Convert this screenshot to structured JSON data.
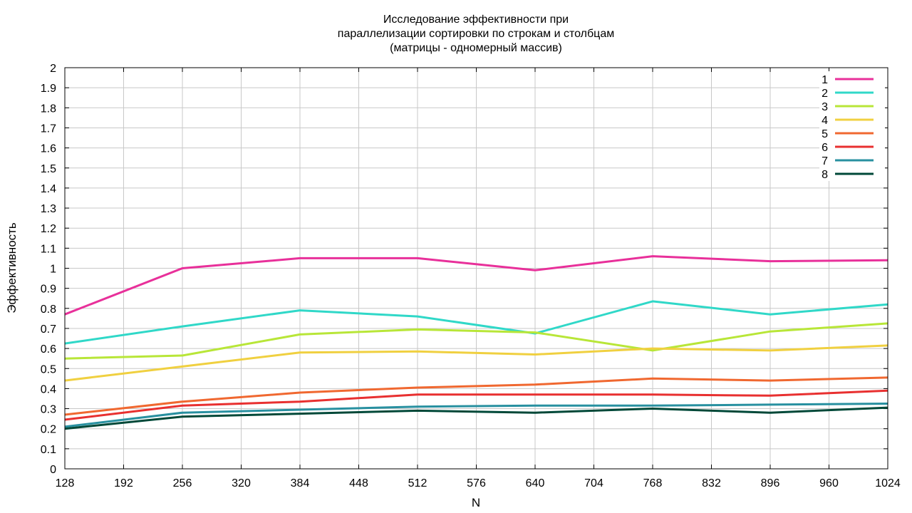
{
  "chart_data": {
    "type": "line",
    "title": [
      "Исследование эффективности при",
      "параллелизации сортировки по строкам и столбцам",
      "(матрицы - одномерный массив)"
    ],
    "xlabel": "N",
    "ylabel": "Эффективность",
    "xlim": [
      128,
      1024
    ],
    "ylim": [
      0,
      2
    ],
    "xticks": [
      "128",
      "192",
      "256",
      "320",
      "384",
      "448",
      "512",
      "576",
      "640",
      "704",
      "768",
      "832",
      "896",
      "960",
      "1024"
    ],
    "yticks": [
      "0",
      "0.1",
      "0.2",
      "0.3",
      "0.4",
      "0.5",
      "0.6",
      "0.7",
      "0.8",
      "0.9",
      "1",
      "1.1",
      "1.2",
      "1.3",
      "1.4",
      "1.5",
      "1.6",
      "1.7",
      "1.8",
      "1.9",
      "2"
    ],
    "grid": true,
    "legend_position": "top-right",
    "x": [
      128,
      256,
      384,
      512,
      640,
      768,
      896,
      1024
    ],
    "series": [
      {
        "name": "1",
        "color": "#e8309a",
        "values": [
          0.77,
          1.0,
          1.05,
          1.05,
          0.99,
          1.06,
          1.035,
          1.04
        ]
      },
      {
        "name": "2",
        "color": "#30d8c8",
        "values": [
          0.625,
          0.71,
          0.79,
          0.76,
          0.675,
          0.835,
          0.77,
          0.82
        ]
      },
      {
        "name": "3",
        "color": "#b8e638",
        "values": [
          0.55,
          0.565,
          0.67,
          0.695,
          0.68,
          0.59,
          0.685,
          0.725
        ]
      },
      {
        "name": "4",
        "color": "#f0d040",
        "values": [
          0.44,
          0.51,
          0.58,
          0.585,
          0.57,
          0.6,
          0.59,
          0.615
        ]
      },
      {
        "name": "5",
        "color": "#f06830",
        "values": [
          0.27,
          0.335,
          0.38,
          0.405,
          0.42,
          0.45,
          0.44,
          0.455
        ]
      },
      {
        "name": "6",
        "color": "#e83030",
        "values": [
          0.245,
          0.315,
          0.335,
          0.37,
          0.37,
          0.37,
          0.365,
          0.39
        ]
      },
      {
        "name": "7",
        "color": "#2890a0",
        "values": [
          0.21,
          0.28,
          0.295,
          0.31,
          0.315,
          0.315,
          0.32,
          0.325
        ]
      },
      {
        "name": "8",
        "color": "#004838",
        "values": [
          0.2,
          0.26,
          0.275,
          0.29,
          0.28,
          0.3,
          0.28,
          0.305
        ]
      }
    ]
  }
}
